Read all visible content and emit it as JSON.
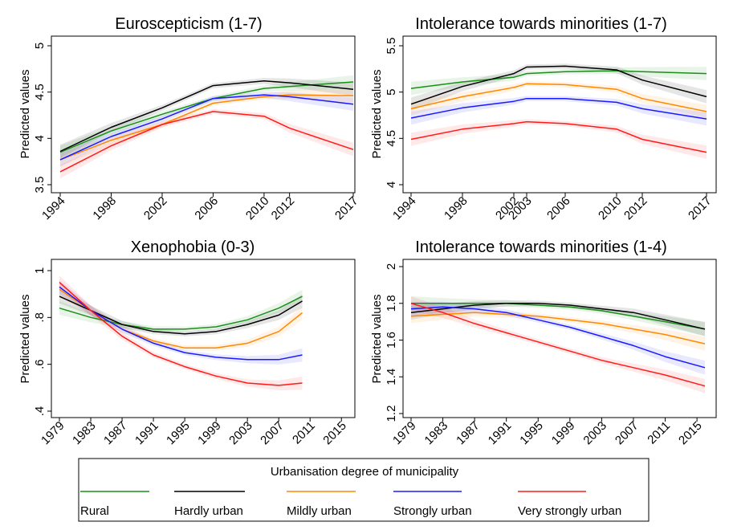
{
  "chart_data": [
    {
      "type": "line",
      "title": "Euroscepticism (1-7)",
      "xlabel": "",
      "ylabel": "Predicted values",
      "x": [
        1994,
        1998,
        2002,
        2006,
        2010,
        2012,
        2017
      ],
      "xticks": [
        1994,
        1998,
        2002,
        2006,
        2010,
        2012,
        2017
      ],
      "ylim": [
        3.5,
        5
      ],
      "yticks": [
        3.5,
        4,
        4.5,
        5
      ],
      "ytick_labels": [
        "3.5",
        "4",
        "4.5",
        "5"
      ],
      "confidence_bands": true,
      "series": [
        {
          "name": "Rural",
          "values": [
            3.85,
            4.08,
            4.26,
            4.43,
            4.54,
            4.56,
            4.61
          ]
        },
        {
          "name": "Hardly urban",
          "values": [
            3.86,
            4.12,
            4.33,
            4.57,
            4.62,
            4.6,
            4.53
          ]
        },
        {
          "name": "Mildly urban",
          "values": [
            3.77,
            3.98,
            4.15,
            4.38,
            4.45,
            4.47,
            4.46
          ]
        },
        {
          "name": "Strongly urban",
          "values": [
            3.77,
            4.02,
            4.21,
            4.43,
            4.47,
            4.45,
            4.37
          ]
        },
        {
          "name": "Very strongly urban",
          "values": [
            3.64,
            3.92,
            4.15,
            4.29,
            4.24,
            4.11,
            3.88
          ]
        }
      ]
    },
    {
      "type": "line",
      "title": "Intolerance towards minorities (1-7)",
      "xlabel": "",
      "ylabel": "Predicted values",
      "x": [
        1994,
        1998,
        2002,
        2003,
        2006,
        2010,
        2012,
        2017
      ],
      "xticks": [
        1994,
        1998,
        2002,
        2003,
        2006,
        2010,
        2012,
        2017
      ],
      "ylim": [
        4,
        5.5
      ],
      "yticks": [
        4,
        4.5,
        5,
        5.5
      ],
      "ytick_labels": [
        "4",
        "4.5",
        "5",
        "5.5"
      ],
      "confidence_bands": true,
      "series": [
        {
          "name": "Rural",
          "values": [
            5.04,
            5.11,
            5.16,
            5.2,
            5.22,
            5.23,
            5.22,
            5.2
          ]
        },
        {
          "name": "Hardly urban",
          "values": [
            4.87,
            5.06,
            5.2,
            5.27,
            5.28,
            5.24,
            5.13,
            4.95
          ]
        },
        {
          "name": "Mildly urban",
          "values": [
            4.82,
            4.95,
            5.05,
            5.09,
            5.08,
            5.03,
            4.93,
            4.79
          ]
        },
        {
          "name": "Strongly urban",
          "values": [
            4.72,
            4.83,
            4.9,
            4.93,
            4.93,
            4.89,
            4.82,
            4.71
          ]
        },
        {
          "name": "Very strongly urban",
          "values": [
            4.49,
            4.6,
            4.66,
            4.68,
            4.66,
            4.6,
            4.49,
            4.35
          ]
        }
      ]
    },
    {
      "type": "line",
      "title": "Xenophobia (0-3)",
      "xlabel": "",
      "ylabel": "Predicted values",
      "x": [
        1979,
        1983,
        1987,
        1991,
        1995,
        1999,
        2003,
        2007,
        2010
      ],
      "xticks": [
        1979,
        1983,
        1987,
        1991,
        1995,
        1999,
        2003,
        2007,
        2011,
        2015
      ],
      "xlim": [
        1979,
        2016
      ],
      "ylim": [
        0.4,
        1.0
      ],
      "yticks": [
        0.4,
        0.6,
        0.8,
        1.0
      ],
      "ytick_labels": [
        ".4",
        ".6",
        ".8",
        "1"
      ],
      "confidence_bands": true,
      "series": [
        {
          "name": "Rural",
          "values": [
            0.84,
            0.8,
            0.77,
            0.75,
            0.75,
            0.76,
            0.79,
            0.84,
            0.89
          ]
        },
        {
          "name": "Hardly urban",
          "values": [
            0.89,
            0.83,
            0.77,
            0.74,
            0.73,
            0.74,
            0.77,
            0.81,
            0.87
          ]
        },
        {
          "name": "Mildly urban",
          "values": [
            0.92,
            0.83,
            0.75,
            0.7,
            0.67,
            0.67,
            0.69,
            0.74,
            0.82
          ]
        },
        {
          "name": "Strongly urban",
          "values": [
            0.93,
            0.83,
            0.75,
            0.69,
            0.65,
            0.63,
            0.62,
            0.62,
            0.64
          ]
        },
        {
          "name": "Very strongly urban",
          "values": [
            0.95,
            0.83,
            0.72,
            0.64,
            0.59,
            0.55,
            0.52,
            0.51,
            0.52
          ]
        }
      ]
    },
    {
      "type": "line",
      "title": "Intolerance towards minorities (1-4)",
      "xlabel": "",
      "ylabel": "Predicted values",
      "x": [
        1979,
        1983,
        1987,
        1991,
        1995,
        1999,
        2003,
        2007,
        2011,
        2016
      ],
      "xticks": [
        1979,
        1983,
        1987,
        1991,
        1995,
        1999,
        2003,
        2007,
        2011,
        2015
      ],
      "xlim": [
        1979,
        2016
      ],
      "ylim": [
        1.2,
        2.0
      ],
      "yticks": [
        1.2,
        1.4,
        1.6,
        1.8,
        2.0
      ],
      "ytick_labels": [
        "1.2",
        "1.4",
        "1.6",
        "1.8",
        "2"
      ],
      "confidence_bands": true,
      "series": [
        {
          "name": "Rural",
          "values": [
            1.8,
            1.8,
            1.8,
            1.8,
            1.79,
            1.78,
            1.76,
            1.73,
            1.7,
            1.66
          ]
        },
        {
          "name": "Hardly urban",
          "values": [
            1.75,
            1.77,
            1.79,
            1.8,
            1.8,
            1.79,
            1.77,
            1.75,
            1.71,
            1.66
          ]
        },
        {
          "name": "Mildly urban",
          "values": [
            1.73,
            1.74,
            1.75,
            1.74,
            1.73,
            1.71,
            1.69,
            1.66,
            1.63,
            1.58
          ]
        },
        {
          "name": "Strongly urban",
          "values": [
            1.77,
            1.78,
            1.77,
            1.75,
            1.71,
            1.67,
            1.62,
            1.57,
            1.51,
            1.45
          ]
        },
        {
          "name": "Very strongly urban",
          "values": [
            1.8,
            1.75,
            1.69,
            1.64,
            1.59,
            1.54,
            1.49,
            1.45,
            1.41,
            1.35
          ]
        }
      ]
    }
  ],
  "legend": {
    "title": "Urbanisation degree of municipality",
    "items": [
      {
        "label": "Rural",
        "color": "#1a8f1a"
      },
      {
        "label": "Hardly urban",
        "color": "#000000"
      },
      {
        "label": "Mildly urban",
        "color": "#ff8800"
      },
      {
        "label": "Strongly urban",
        "color": "#1a1aff"
      },
      {
        "label": "Very strongly urban",
        "color": "#ff1a1a"
      }
    ]
  }
}
